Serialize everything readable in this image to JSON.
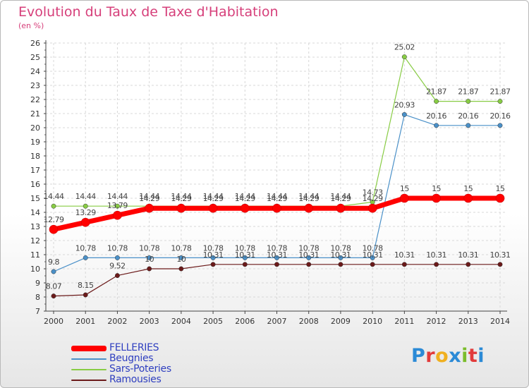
{
  "title": "Evolution du Taux de Taxe d'Habitation",
  "subtitle": "(en %)",
  "logo": {
    "text": "Proxiti",
    "letters": [
      "P",
      "r",
      "o",
      "x",
      "i",
      "t",
      "i"
    ],
    "colors": [
      "#2b8ad6",
      "#e23b3b",
      "#f0b020",
      "#2b8ad6",
      "#7bbd2c",
      "#e23b3b",
      "#2b8ad6"
    ]
  },
  "chart_data": {
    "type": "line",
    "categories": [
      "2000",
      "2001",
      "2002",
      "2003",
      "2004",
      "2005",
      "2006",
      "2007",
      "2008",
      "2009",
      "2010",
      "2011",
      "2012",
      "2013",
      "2014"
    ],
    "ylim": [
      7,
      26
    ],
    "yticks": [
      "7",
      "8",
      "9",
      "10",
      "11",
      "12",
      "13",
      "14",
      "15",
      "16",
      "17",
      "18",
      "19",
      "20",
      "21",
      "22",
      "23",
      "24",
      "25",
      "26"
    ],
    "grid": true,
    "legend_position": "bottom-left",
    "series": [
      {
        "name": "FELLERIES",
        "color": "#ff0000",
        "values": [
          12.79,
          13.29,
          13.79,
          14.29,
          14.29,
          14.29,
          14.29,
          14.29,
          14.29,
          14.29,
          14.29,
          15,
          15,
          15,
          15
        ],
        "labels": [
          "12.79",
          "13.29",
          "13.79",
          "14.29",
          "14.29",
          "14.29",
          "14.29",
          "14.29",
          "14.29",
          "14.29",
          "14.29",
          "15",
          "15",
          "15",
          "15"
        ]
      },
      {
        "name": "Beugnies",
        "color": "#4a90c8",
        "values": [
          9.8,
          10.78,
          10.78,
          10.78,
          10.78,
          10.78,
          10.78,
          10.78,
          10.78,
          10.78,
          10.78,
          20.93,
          20.16,
          20.16,
          20.16
        ],
        "labels": [
          "9.8",
          "10.78",
          "10.78",
          "10.78",
          "10.78",
          "10.78",
          "10.78",
          "10.78",
          "10.78",
          "10.78",
          "10.78",
          "20.93",
          "20.16",
          "20.16",
          "20.16"
        ]
      },
      {
        "name": "Sars-Poteries",
        "color": "#88cc44",
        "values": [
          14.44,
          14.44,
          14.44,
          14.44,
          14.44,
          14.44,
          14.44,
          14.44,
          14.44,
          14.44,
          14.73,
          25.02,
          21.87,
          21.87,
          21.87
        ],
        "labels": [
          "14.44",
          "14.44",
          "14.44",
          "14.44",
          "14.44",
          "14.44",
          "14.44",
          "14.44",
          "14.44",
          "14.44",
          "14.73",
          "25.02",
          "21.87",
          "21.87",
          "21.87"
        ]
      },
      {
        "name": "Ramousies",
        "color": "#6b1a1a",
        "values": [
          8.07,
          8.15,
          9.52,
          10,
          10,
          10.31,
          10.31,
          10.31,
          10.31,
          10.31,
          10.31,
          10.31,
          10.31,
          10.31,
          10.31
        ],
        "labels": [
          "8.07",
          "8.15",
          "9.52",
          "10",
          "10",
          "10.31",
          "10.31",
          "10.31",
          "10.31",
          "10.31",
          "10.31",
          "10.31",
          "10.31",
          "10.31",
          "10.31"
        ]
      }
    ]
  }
}
